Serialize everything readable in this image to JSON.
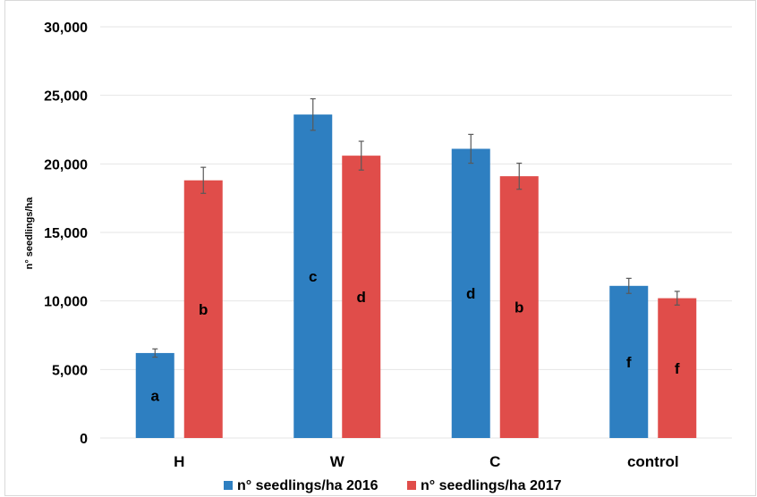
{
  "chart_data": {
    "type": "bar",
    "title": "",
    "xlabel": "",
    "ylabel": "n° seedlings/ha",
    "ylim": [
      0,
      30000
    ],
    "yticks": [
      0,
      5000,
      10000,
      15000,
      20000,
      25000,
      30000
    ],
    "ytick_labels": [
      "0",
      "5,000",
      "10,000",
      "15,000",
      "20,000",
      "25,000",
      "30,000"
    ],
    "grid": true,
    "legend_position": "bottom",
    "categories": [
      "H",
      "W",
      "C",
      "control"
    ],
    "series": [
      {
        "name": "n° seedlings/ha 2016",
        "color": "#2e7fc1",
        "values": [
          6200,
          23600,
          21100,
          11100
        ],
        "errors": [
          300,
          1150,
          1050,
          550
        ],
        "letters": [
          "a",
          "c",
          "d",
          "f"
        ]
      },
      {
        "name": "n° seedlings/ha 2017",
        "color": "#e04d4a",
        "values": [
          18800,
          20600,
          19100,
          10200
        ],
        "errors": [
          950,
          1050,
          950,
          500
        ],
        "letters": [
          "b",
          "d",
          "b",
          "f"
        ]
      }
    ]
  }
}
